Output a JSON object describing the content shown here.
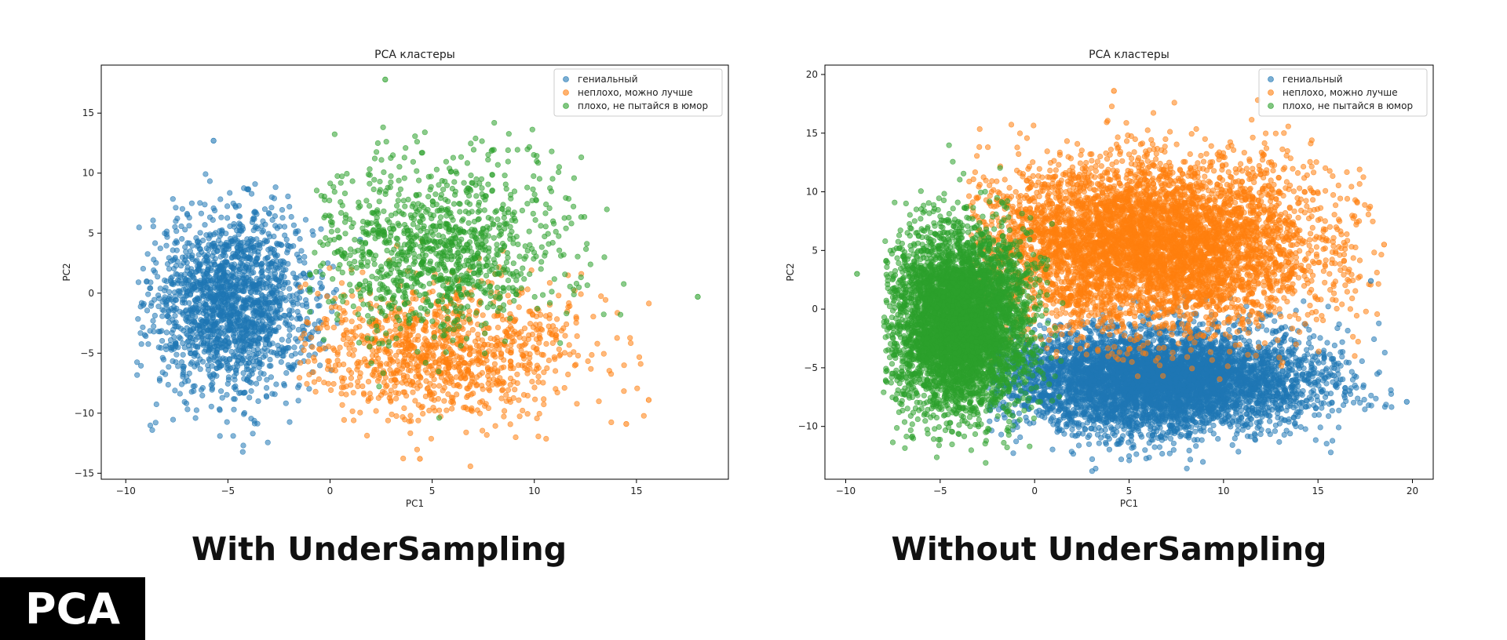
{
  "badge": "PCA",
  "captions": {
    "left": "With UnderSampling",
    "right": "Without UnderSampling"
  },
  "chart_data": [
    {
      "type": "scatter",
      "title": "PCA кластеры",
      "xlabel": "PC1",
      "ylabel": "PC2",
      "xlim": [
        -11.2,
        19.5
      ],
      "ylim": [
        -15.5,
        19.0
      ],
      "xticks": [
        -10,
        -5,
        0,
        5,
        10,
        15
      ],
      "yticks": [
        -15,
        -10,
        -5,
        0,
        5,
        10,
        15
      ],
      "legend_position": "upper-right",
      "series": [
        {
          "name": "гениальный",
          "color": "#1f77b4",
          "n": 1800,
          "center": [
            -4.8,
            -0.8
          ],
          "spread": [
            2.0,
            3.7
          ],
          "clip_x": [
            -9.5,
            3.0
          ]
        },
        {
          "name": "неплохо, можно лучше",
          "color": "#ff7f0e",
          "n": 1100,
          "center": [
            5.5,
            -4.8
          ],
          "spread": [
            3.3,
            2.8
          ],
          "clip_x": [
            -1.5,
            15.8
          ]
        },
        {
          "name": "плохо, не пытайся в юмор",
          "color": "#2ca02c",
          "n": 1100,
          "center": [
            5.2,
            3.6
          ],
          "spread": [
            3.3,
            3.6
          ],
          "clip_x": [
            -1.0,
            14.5
          ]
        }
      ],
      "outliers": [
        {
          "series": 2,
          "x": 2.7,
          "y": 17.8
        },
        {
          "series": 2,
          "x": 18.0,
          "y": -0.3
        },
        {
          "series": 1,
          "x": 15.6,
          "y": -8.9
        },
        {
          "series": 1,
          "x": 14.5,
          "y": -10.9
        },
        {
          "series": 1,
          "x": 4.4,
          "y": -13.8
        },
        {
          "series": 0,
          "x": -5.7,
          "y": 12.7
        }
      ]
    },
    {
      "type": "scatter",
      "title": "PCA кластеры",
      "xlabel": "PC1",
      "ylabel": "PC2",
      "xlim": [
        -11.1,
        21.1
      ],
      "ylim": [
        -14.5,
        20.8
      ],
      "xticks": [
        -10,
        -5,
        0,
        5,
        10,
        15,
        20
      ],
      "yticks": [
        -10,
        -5,
        0,
        5,
        10,
        15,
        20
      ],
      "legend_position": "upper-right",
      "series": [
        {
          "name": "гениальный",
          "color": "#1f77b4",
          "n": 5500,
          "center": [
            6.5,
            -6.0
          ],
          "spread": [
            4.2,
            2.2
          ],
          "clip_x": [
            -2.5,
            19.0
          ]
        },
        {
          "name": "неплохо, можно лучше",
          "color": "#ff7f0e",
          "n": 5500,
          "center": [
            6.0,
            5.5
          ],
          "spread": [
            4.5,
            3.6
          ],
          "clip_x": [
            -3.5,
            18.5
          ]
        },
        {
          "name": "плохо, не пытайся в юмор",
          "color": "#2ca02c",
          "n": 5000,
          "center": [
            -4.0,
            -1.0
          ],
          "spread": [
            1.8,
            3.8
          ],
          "clip_x": [
            -8.0,
            1.5
          ]
        }
      ],
      "outliers": [
        {
          "series": 0,
          "x": 19.7,
          "y": -7.9
        },
        {
          "series": 0,
          "x": 17.8,
          "y": 2.4
        },
        {
          "series": 1,
          "x": 4.2,
          "y": 18.6
        },
        {
          "series": 1,
          "x": 18.5,
          "y": 5.5
        },
        {
          "series": 2,
          "x": -9.4,
          "y": 3.0
        }
      ]
    }
  ]
}
